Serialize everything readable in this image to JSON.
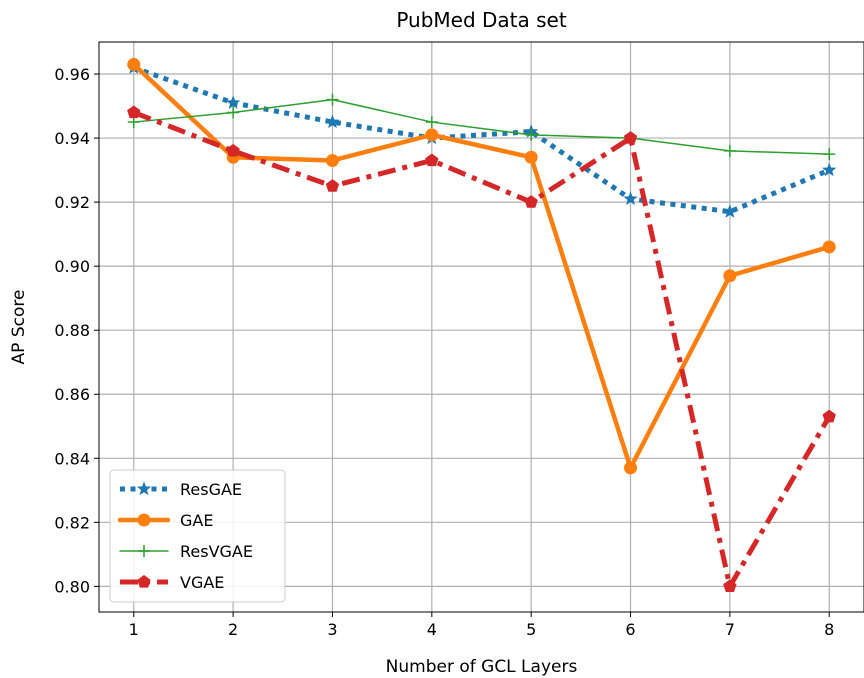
{
  "chart_data": {
    "type": "line",
    "title": "PubMed Data set",
    "xlabel": "Number of GCL Layers",
    "ylabel": "AP Score",
    "x": [
      1,
      2,
      3,
      4,
      5,
      6,
      7,
      8
    ],
    "xlim": [
      0.65,
      8.35
    ],
    "ylim": [
      0.792,
      0.97
    ],
    "yticks": [
      0.8,
      0.82,
      0.84,
      0.86,
      0.88,
      0.9,
      0.92,
      0.94,
      0.96
    ],
    "ytick_labels": [
      "0.80",
      "0.82",
      "0.84",
      "0.86",
      "0.88",
      "0.90",
      "0.92",
      "0.94",
      "0.96"
    ],
    "xtick_labels": [
      "1",
      "2",
      "3",
      "4",
      "5",
      "6",
      "7",
      "8"
    ],
    "grid": true,
    "legend_position": "lower-left",
    "series": [
      {
        "name": "ResGAE",
        "values": [
          0.962,
          0.951,
          0.945,
          0.94,
          0.942,
          0.921,
          0.917,
          0.93
        ],
        "color": "#1f77b4",
        "line_style": "dotted",
        "marker": "star"
      },
      {
        "name": "GAE",
        "values": [
          0.963,
          0.934,
          0.933,
          0.941,
          0.934,
          0.837,
          0.897,
          0.906
        ],
        "color": "#ff7f0e",
        "line_style": "solid",
        "marker": "circle"
      },
      {
        "name": "ResVGAE",
        "values": [
          0.945,
          0.948,
          0.952,
          0.945,
          0.941,
          0.94,
          0.936,
          0.935
        ],
        "color": "#2ca02c",
        "line_style": "solid",
        "marker": "plus"
      },
      {
        "name": "VGAE",
        "values": [
          0.948,
          0.936,
          0.925,
          0.933,
          0.92,
          0.94,
          0.8,
          0.853
        ],
        "color": "#d62728",
        "line_style": "dashdot",
        "marker": "pentagon"
      }
    ]
  }
}
